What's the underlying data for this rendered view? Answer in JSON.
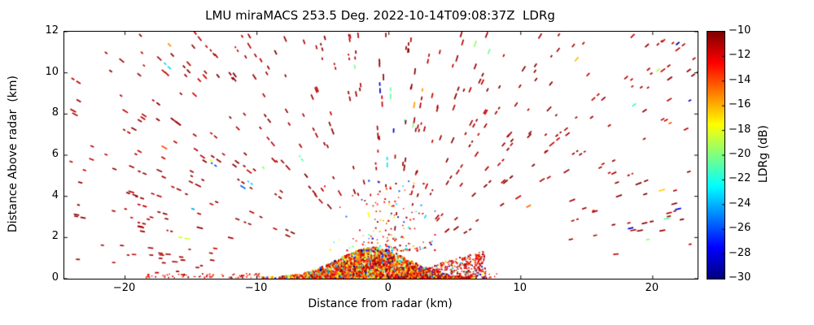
{
  "figure": {
    "background": "#ffffff",
    "frame_color": "#000000"
  },
  "chart_data": {
    "type": "scatter",
    "title": "LMU miraMACS 253.5 Deg. 2022-10-14T09:08:37Z  LDRg",
    "xlabel": "Distance from radar (km)",
    "ylabel": "Distance Above radar  (km)",
    "xlim": [
      -24.6,
      23.4
    ],
    "ylim": [
      0,
      12
    ],
    "xticks": [
      -20,
      -10,
      0,
      10,
      20
    ],
    "yticks": [
      0,
      2,
      4,
      6,
      8,
      10,
      12
    ],
    "grid": false,
    "colorbar": {
      "label": "LDRg (dB)",
      "min": -30,
      "max": -10,
      "ticks": [
        -10,
        -12,
        -14,
        -16,
        -18,
        -20,
        -22,
        -24,
        -26,
        -28,
        -30
      ],
      "colormap": "jet",
      "position": "right"
    },
    "content": {
      "description": "RHI radar scan of LDRg: sparse dark-red short echo streaks (~ -10 dB) scattered between 2 and 12 km height across -24 to +23 km range; dense multicolored near-ground clutter/insect fan below ~1.4 km between -9 and +7 km with a curved fan edge on the right; thin line of specks along the bottom left; sparse plume of dots rising to ~4.8 km near x=0.",
      "seed": 7,
      "sparse_streaks": {
        "count": 400,
        "x_range": [
          -24.2,
          23.2
        ],
        "y_range": [
          1.8,
          11.9
        ],
        "ldr_main": [
          -11.5,
          -10
        ],
        "off_color_fraction": 0.08
      },
      "low_edge_streaks": {
        "count": 26,
        "x_ranges": [
          [
            -24.4,
            -13
          ],
          [
            8,
            23.2
          ]
        ],
        "y_range": [
          0.25,
          1.8
        ],
        "left_fraction": 0.8
      },
      "clutter_core": {
        "count": 2200,
        "x_center": -1.2,
        "x_sigma": 3.0,
        "x_clamp": [
          -9.6,
          7.2
        ],
        "max_height_km": 1.45
      },
      "fan_wedge": {
        "count": 420,
        "radius_km": 7.35,
        "theta_range": [
          0.008,
          0.19
        ]
      },
      "plume_above_core": {
        "count": 170,
        "x_center": 0,
        "x_sigma": 1.5,
        "x_clamp": [
          -6.5,
          3.5
        ],
        "y_range": [
          1.35,
          4.8
        ]
      },
      "bottom_specks": {
        "count": 95,
        "x_ranges": [
          [
            -18.5,
            -9
          ],
          [
            5,
            8.3
          ]
        ],
        "y_range": [
          0.03,
          0.25
        ],
        "left_fraction": 0.72
      }
    }
  }
}
